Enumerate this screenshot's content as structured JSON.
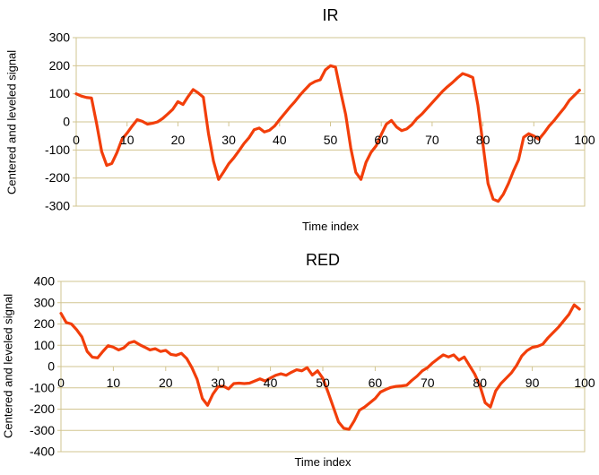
{
  "background": "#FFFFFF",
  "chart_data": [
    {
      "type": "line",
      "title": "IR",
      "xlabel": "Time index",
      "ylabel": "Centered and leveled signal",
      "xlim": [
        0,
        100
      ],
      "ylim": [
        -300,
        300
      ],
      "xstep": 10,
      "ystep": 100,
      "grid": "on",
      "legend": "none",
      "line_color": "#F23E0A",
      "grid_color": "#D2C591",
      "values": [
        100,
        92,
        87,
        85,
        -5,
        -105,
        -155,
        -148,
        -110,
        -62,
        -40,
        -15,
        8,
        2,
        -8,
        -5,
        0,
        12,
        28,
        45,
        72,
        62,
        90,
        115,
        103,
        88,
        -40,
        -140,
        -205,
        -178,
        -149,
        -128,
        -103,
        -77,
        -56,
        -28,
        -22,
        -36,
        -30,
        -15,
        8,
        30,
        52,
        72,
        95,
        115,
        134,
        144,
        150,
        185,
        200,
        195,
        108,
        26,
        -93,
        -180,
        -205,
        -144,
        -108,
        -85,
        -45,
        -8,
        5,
        -18,
        -31,
        -25,
        -10,
        12,
        28,
        48,
        68,
        88,
        108,
        125,
        140,
        157,
        172,
        166,
        158,
        60,
        -80,
        -220,
        -275,
        -283,
        -258,
        -220,
        -175,
        -135,
        -55,
        -42,
        -50,
        -62,
        -40,
        -15,
        5,
        28,
        50,
        77,
        95,
        113
      ]
    },
    {
      "type": "line",
      "title": "RED",
      "xlabel": "Time index",
      "ylabel": "Centered and leveled signal",
      "xlim": [
        0,
        100
      ],
      "ylim": [
        -400,
        400
      ],
      "xstep": 10,
      "ystep": 100,
      "grid": "on",
      "legend": "none",
      "line_color": "#F23E0A",
      "grid_color": "#D2C591",
      "values": [
        250,
        207,
        200,
        173,
        139,
        71,
        44,
        41,
        71,
        98,
        91,
        78,
        88,
        111,
        118,
        103,
        91,
        78,
        84,
        71,
        76,
        57,
        53,
        62,
        38,
        -5,
        -60,
        -150,
        -182,
        -130,
        -95,
        -92,
        -105,
        -80,
        -78,
        -80,
        -78,
        -68,
        -58,
        -68,
        -54,
        -41,
        -34,
        -41,
        -27,
        -15,
        -20,
        -5,
        -40,
        -20,
        -55,
        -120,
        -190,
        -260,
        -290,
        -295,
        -255,
        -205,
        -190,
        -170,
        -150,
        -120,
        -108,
        -98,
        -93,
        -91,
        -88,
        -65,
        -45,
        -20,
        -5,
        18,
        37,
        55,
        45,
        55,
        30,
        45,
        5,
        -35,
        -90,
        -170,
        -190,
        -115,
        -80,
        -55,
        -30,
        5,
        50,
        75,
        90,
        95,
        105,
        135,
        160,
        185,
        215,
        245,
        290,
        270
      ]
    }
  ]
}
